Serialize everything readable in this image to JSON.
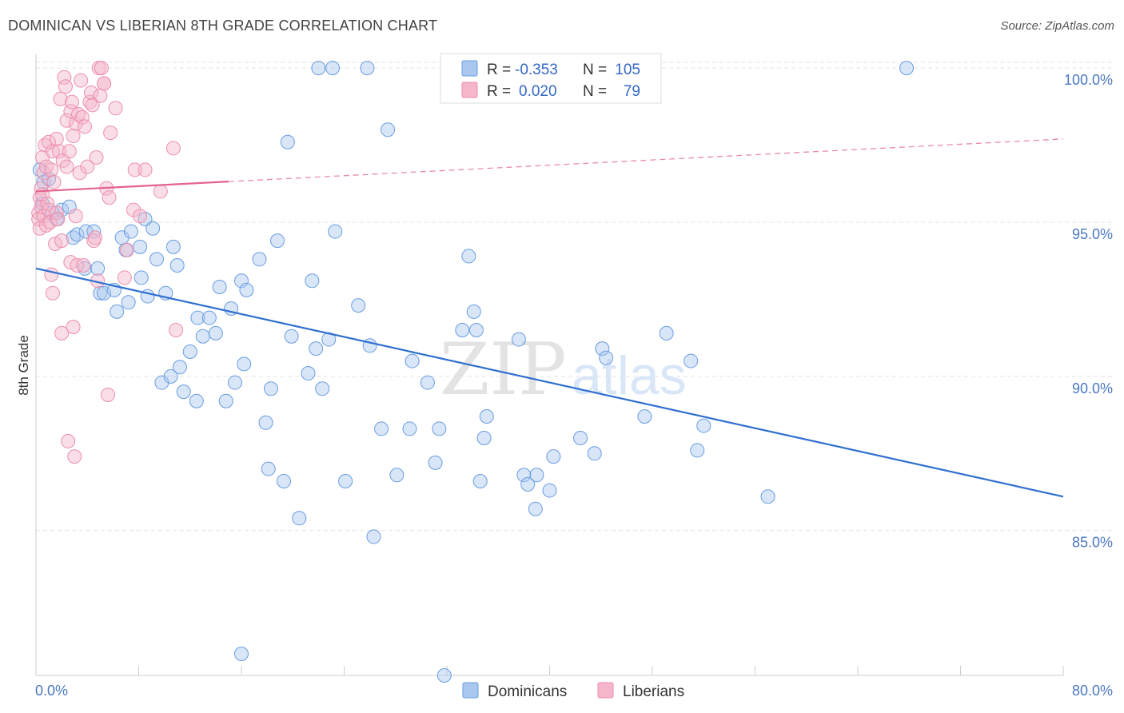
{
  "header": {
    "title": "DOMINICAN VS LIBERIAN 8TH GRADE CORRELATION CHART",
    "source": "Source: ZipAtlas.com"
  },
  "watermark": {
    "zip": "ZIP",
    "atlas": "atlas"
  },
  "legend": {
    "r_label": "R =",
    "n_label": "N =",
    "rows": [
      {
        "r": "-0.353",
        "n": "105",
        "color": "#a9c7ef"
      },
      {
        "r": "0.020",
        "n": "79",
        "color": "#f5b6ca"
      }
    ]
  },
  "bottom_legend": [
    {
      "label": "Dominicans",
      "color": "#a9c7ef"
    },
    {
      "label": "Liberians",
      "color": "#f5b6ca"
    }
  ],
  "chart_data": {
    "type": "scatter",
    "title": "DOMINICAN VS LIBERIAN 8TH GRADE CORRELATION CHART",
    "xlabel": "",
    "ylabel": "8th Grade",
    "xlim": [
      0,
      80
    ],
    "ylim": [
      80.3,
      100.6
    ],
    "x_tick_labels": [
      "0.0%",
      "80.0%"
    ],
    "y_ticks": [
      85,
      90,
      95,
      100
    ],
    "y_tick_labels": [
      "85.0%",
      "90.0%",
      "95.0%",
      "100.0%"
    ],
    "grid": true,
    "series": [
      {
        "name": "Dominicans",
        "color": "#6a9de0",
        "fill": "#a9c7ef",
        "R": -0.353,
        "N": 105,
        "trend": {
          "x": [
            0,
            80
          ],
          "y": [
            93.5,
            86.1
          ],
          "style": "solid"
        },
        "points": [
          [
            0.3,
            96.7
          ],
          [
            0.5,
            95.6
          ],
          [
            0.6,
            96.3
          ],
          [
            1.0,
            96.4
          ],
          [
            1.3,
            95.3
          ],
          [
            1.6,
            95.1
          ],
          [
            2.0,
            95.4
          ],
          [
            2.6,
            95.5
          ],
          [
            2.9,
            94.5
          ],
          [
            3.2,
            94.6
          ],
          [
            3.9,
            94.7
          ],
          [
            4.5,
            94.7
          ],
          [
            3.8,
            93.5
          ],
          [
            4.8,
            93.5
          ],
          [
            5.0,
            92.7
          ],
          [
            5.3,
            92.7
          ],
          [
            6.1,
            92.8
          ],
          [
            6.3,
            92.1
          ],
          [
            7.2,
            92.4
          ],
          [
            6.7,
            94.5
          ],
          [
            7.0,
            94.1
          ],
          [
            7.4,
            94.7
          ],
          [
            8.1,
            94.2
          ],
          [
            8.2,
            93.2
          ],
          [
            8.5,
            95.1
          ],
          [
            8.7,
            92.6
          ],
          [
            9.1,
            94.8
          ],
          [
            9.4,
            93.8
          ],
          [
            10.1,
            92.7
          ],
          [
            10.7,
            94.2
          ],
          [
            11.0,
            93.6
          ],
          [
            9.8,
            89.8
          ],
          [
            10.5,
            90.0
          ],
          [
            11.2,
            90.3
          ],
          [
            11.5,
            89.5
          ],
          [
            12.0,
            90.8
          ],
          [
            12.5,
            89.2
          ],
          [
            12.6,
            91.9
          ],
          [
            13.0,
            91.3
          ],
          [
            13.5,
            91.9
          ],
          [
            14.0,
            91.4
          ],
          [
            14.3,
            92.9
          ],
          [
            14.8,
            89.2
          ],
          [
            15.2,
            92.2
          ],
          [
            15.5,
            89.8
          ],
          [
            16.0,
            93.1
          ],
          [
            16.2,
            90.4
          ],
          [
            16.4,
            92.8
          ],
          [
            17.4,
            93.8
          ],
          [
            17.9,
            88.5
          ],
          [
            18.1,
            87.0
          ],
          [
            18.3,
            89.6
          ],
          [
            18.8,
            94.4
          ],
          [
            19.3,
            86.6
          ],
          [
            19.6,
            97.6
          ],
          [
            19.9,
            91.3
          ],
          [
            20.5,
            85.4
          ],
          [
            21.2,
            90.1
          ],
          [
            21.5,
            93.1
          ],
          [
            21.8,
            90.9
          ],
          [
            22.3,
            89.6
          ],
          [
            22.0,
            100.0
          ],
          [
            22.8,
            91.2
          ],
          [
            23.1,
            100.0
          ],
          [
            23.3,
            94.7
          ],
          [
            24.1,
            86.6
          ],
          [
            25.1,
            92.3
          ],
          [
            25.8,
            100.0
          ],
          [
            26.0,
            91.0
          ],
          [
            26.3,
            84.8
          ],
          [
            26.9,
            88.3
          ],
          [
            27.4,
            98.0
          ],
          [
            28.1,
            86.8
          ],
          [
            29.1,
            88.3
          ],
          [
            29.3,
            90.5
          ],
          [
            30.5,
            89.8
          ],
          [
            31.1,
            87.2
          ],
          [
            31.4,
            88.3
          ],
          [
            31.8,
            80.3
          ],
          [
            33.2,
            91.5
          ],
          [
            34.1,
            92.1
          ],
          [
            34.3,
            91.5
          ],
          [
            34.6,
            86.6
          ],
          [
            34.9,
            88.0
          ],
          [
            35.1,
            88.7
          ],
          [
            37.6,
            91.2
          ],
          [
            38.0,
            86.8
          ],
          [
            38.3,
            86.5
          ],
          [
            38.9,
            85.7
          ],
          [
            39.0,
            86.8
          ],
          [
            40.0,
            86.3
          ],
          [
            42.4,
            88.0
          ],
          [
            43.5,
            87.5
          ],
          [
            44.1,
            90.9
          ],
          [
            44.4,
            90.6
          ],
          [
            47.4,
            88.7
          ],
          [
            49.1,
            91.4
          ],
          [
            51.0,
            90.5
          ],
          [
            51.5,
            87.6
          ],
          [
            52.0,
            88.4
          ],
          [
            57.0,
            86.1
          ],
          [
            67.8,
            100.0
          ],
          [
            16.0,
            81.0
          ],
          [
            33.7,
            93.9
          ],
          [
            40.3,
            87.4
          ]
        ]
      },
      {
        "name": "Liberians",
        "color": "#eb8fae",
        "fill": "#f5b6ca",
        "R": 0.02,
        "N": 79,
        "trend": {
          "x": [
            0,
            80
          ],
          "y": [
            96.0,
            97.7
          ],
          "solid_to": 15,
          "style": "solid-then-dashed"
        },
        "points": [
          [
            0.2,
            95.3
          ],
          [
            0.2,
            95.1
          ],
          [
            0.3,
            94.8
          ],
          [
            0.3,
            95.8
          ],
          [
            0.4,
            96.1
          ],
          [
            0.4,
            95.5
          ],
          [
            0.5,
            95.9
          ],
          [
            0.5,
            97.1
          ],
          [
            0.6,
            96.6
          ],
          [
            0.6,
            95.2
          ],
          [
            0.7,
            97.5
          ],
          [
            0.8,
            94.9
          ],
          [
            0.8,
            96.8
          ],
          [
            0.9,
            95.6
          ],
          [
            1.0,
            95.4
          ],
          [
            1.0,
            97.6
          ],
          [
            1.1,
            95.0
          ],
          [
            1.2,
            96.7
          ],
          [
            1.2,
            93.3
          ],
          [
            1.3,
            92.7
          ],
          [
            1.3,
            97.3
          ],
          [
            1.4,
            96.3
          ],
          [
            1.5,
            94.3
          ],
          [
            1.6,
            97.7
          ],
          [
            1.6,
            95.3
          ],
          [
            1.7,
            95.1
          ],
          [
            1.8,
            97.3
          ],
          [
            1.9,
            99.0
          ],
          [
            2.0,
            94.4
          ],
          [
            2.0,
            91.4
          ],
          [
            2.1,
            97.0
          ],
          [
            2.2,
            99.7
          ],
          [
            2.3,
            99.4
          ],
          [
            2.4,
            98.3
          ],
          [
            2.4,
            96.8
          ],
          [
            2.5,
            87.9
          ],
          [
            2.6,
            97.3
          ],
          [
            2.7,
            93.7
          ],
          [
            2.7,
            98.6
          ],
          [
            2.8,
            98.9
          ],
          [
            2.9,
            97.8
          ],
          [
            2.9,
            91.6
          ],
          [
            3.0,
            87.4
          ],
          [
            3.1,
            95.2
          ],
          [
            3.1,
            98.2
          ],
          [
            3.2,
            93.6
          ],
          [
            3.3,
            98.5
          ],
          [
            3.4,
            96.6
          ],
          [
            3.5,
            99.6
          ],
          [
            3.6,
            98.4
          ],
          [
            3.7,
            93.6
          ],
          [
            3.8,
            98.1
          ],
          [
            4.0,
            96.8
          ],
          [
            4.2,
            98.9
          ],
          [
            4.3,
            99.2
          ],
          [
            4.4,
            98.8
          ],
          [
            4.5,
            94.4
          ],
          [
            4.6,
            94.5
          ],
          [
            4.7,
            97.1
          ],
          [
            4.8,
            93.1
          ],
          [
            4.9,
            100.0
          ],
          [
            5.0,
            99.1
          ],
          [
            5.1,
            100.0
          ],
          [
            5.3,
            99.5
          ],
          [
            5.3,
            99.5
          ],
          [
            5.5,
            96.1
          ],
          [
            5.6,
            89.4
          ],
          [
            5.7,
            95.8
          ],
          [
            5.8,
            97.9
          ],
          [
            6.2,
            98.7
          ],
          [
            6.9,
            93.2
          ],
          [
            7.1,
            94.1
          ],
          [
            7.6,
            95.4
          ],
          [
            7.7,
            96.7
          ],
          [
            8.1,
            95.2
          ],
          [
            8.5,
            96.7
          ],
          [
            9.7,
            96.0
          ],
          [
            10.7,
            97.4
          ],
          [
            10.9,
            91.5
          ]
        ]
      }
    ]
  }
}
